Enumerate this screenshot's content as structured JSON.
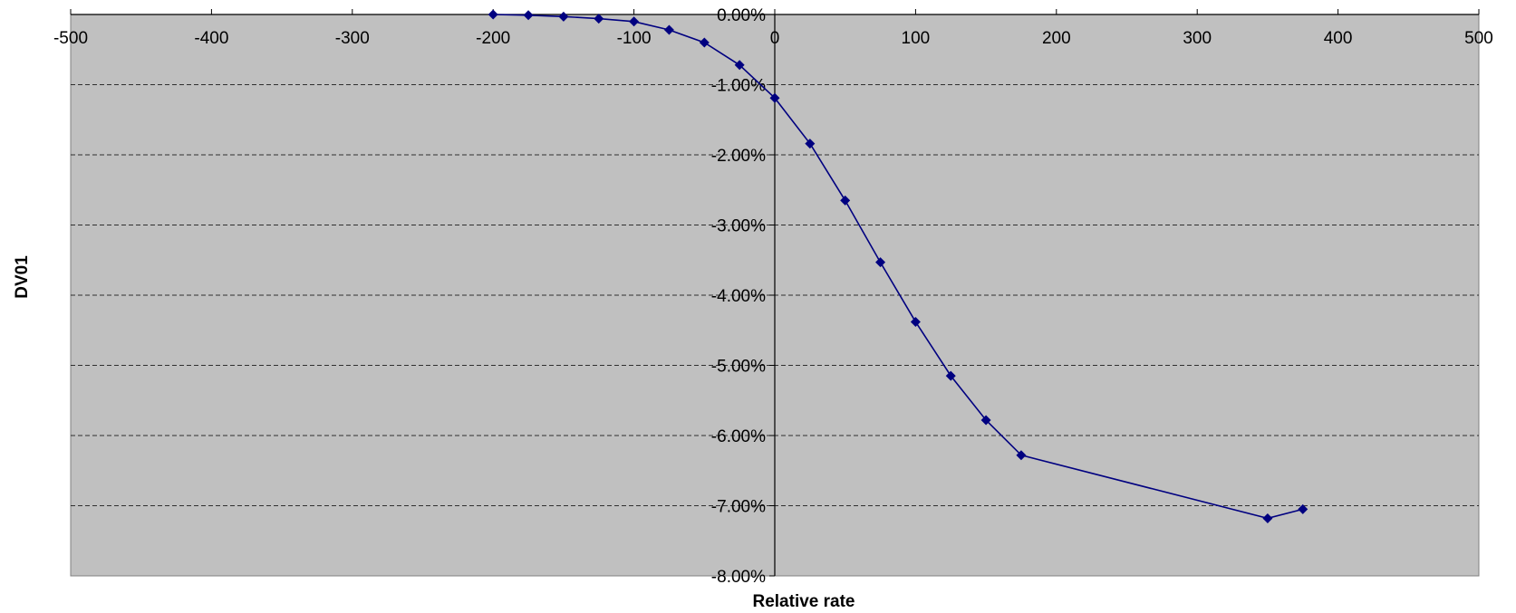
{
  "chart_data": {
    "type": "line",
    "title": "",
    "xlabel": "Relative rate",
    "ylabel": "DV01",
    "xlim": [
      -500,
      500
    ],
    "ylim": [
      -8.0,
      0.0
    ],
    "x_ticks": [
      "-500",
      "-400",
      "-300",
      "-200",
      "-100",
      "0",
      "100",
      "200",
      "300",
      "400",
      "500"
    ],
    "y_ticks": [
      "0.00%",
      "-1.00%",
      "-2.00%",
      "-3.00%",
      "-4.00%",
      "-5.00%",
      "-6.00%",
      "-7.00%",
      "-8.00%"
    ],
    "y_unit": "percent",
    "grid": "horizontal dashed",
    "legend": "none",
    "colors": {
      "plot_background": "#c0c0c0",
      "series_line": "#000080",
      "grid": "#000000"
    },
    "series": [
      {
        "x": [
          -200,
          -175,
          -150,
          -125,
          -100,
          -75,
          -50,
          -25,
          0,
          25,
          50,
          75,
          100,
          125,
          150,
          175,
          350,
          375
        ],
        "values": [
          0.0,
          -0.01,
          -0.03,
          -0.06,
          -0.1,
          -0.22,
          -0.4,
          -0.72,
          -1.19,
          -1.84,
          -2.65,
          -3.53,
          -4.38,
          -5.15,
          -5.78,
          -6.28,
          -7.18,
          -7.05
        ]
      }
    ]
  }
}
